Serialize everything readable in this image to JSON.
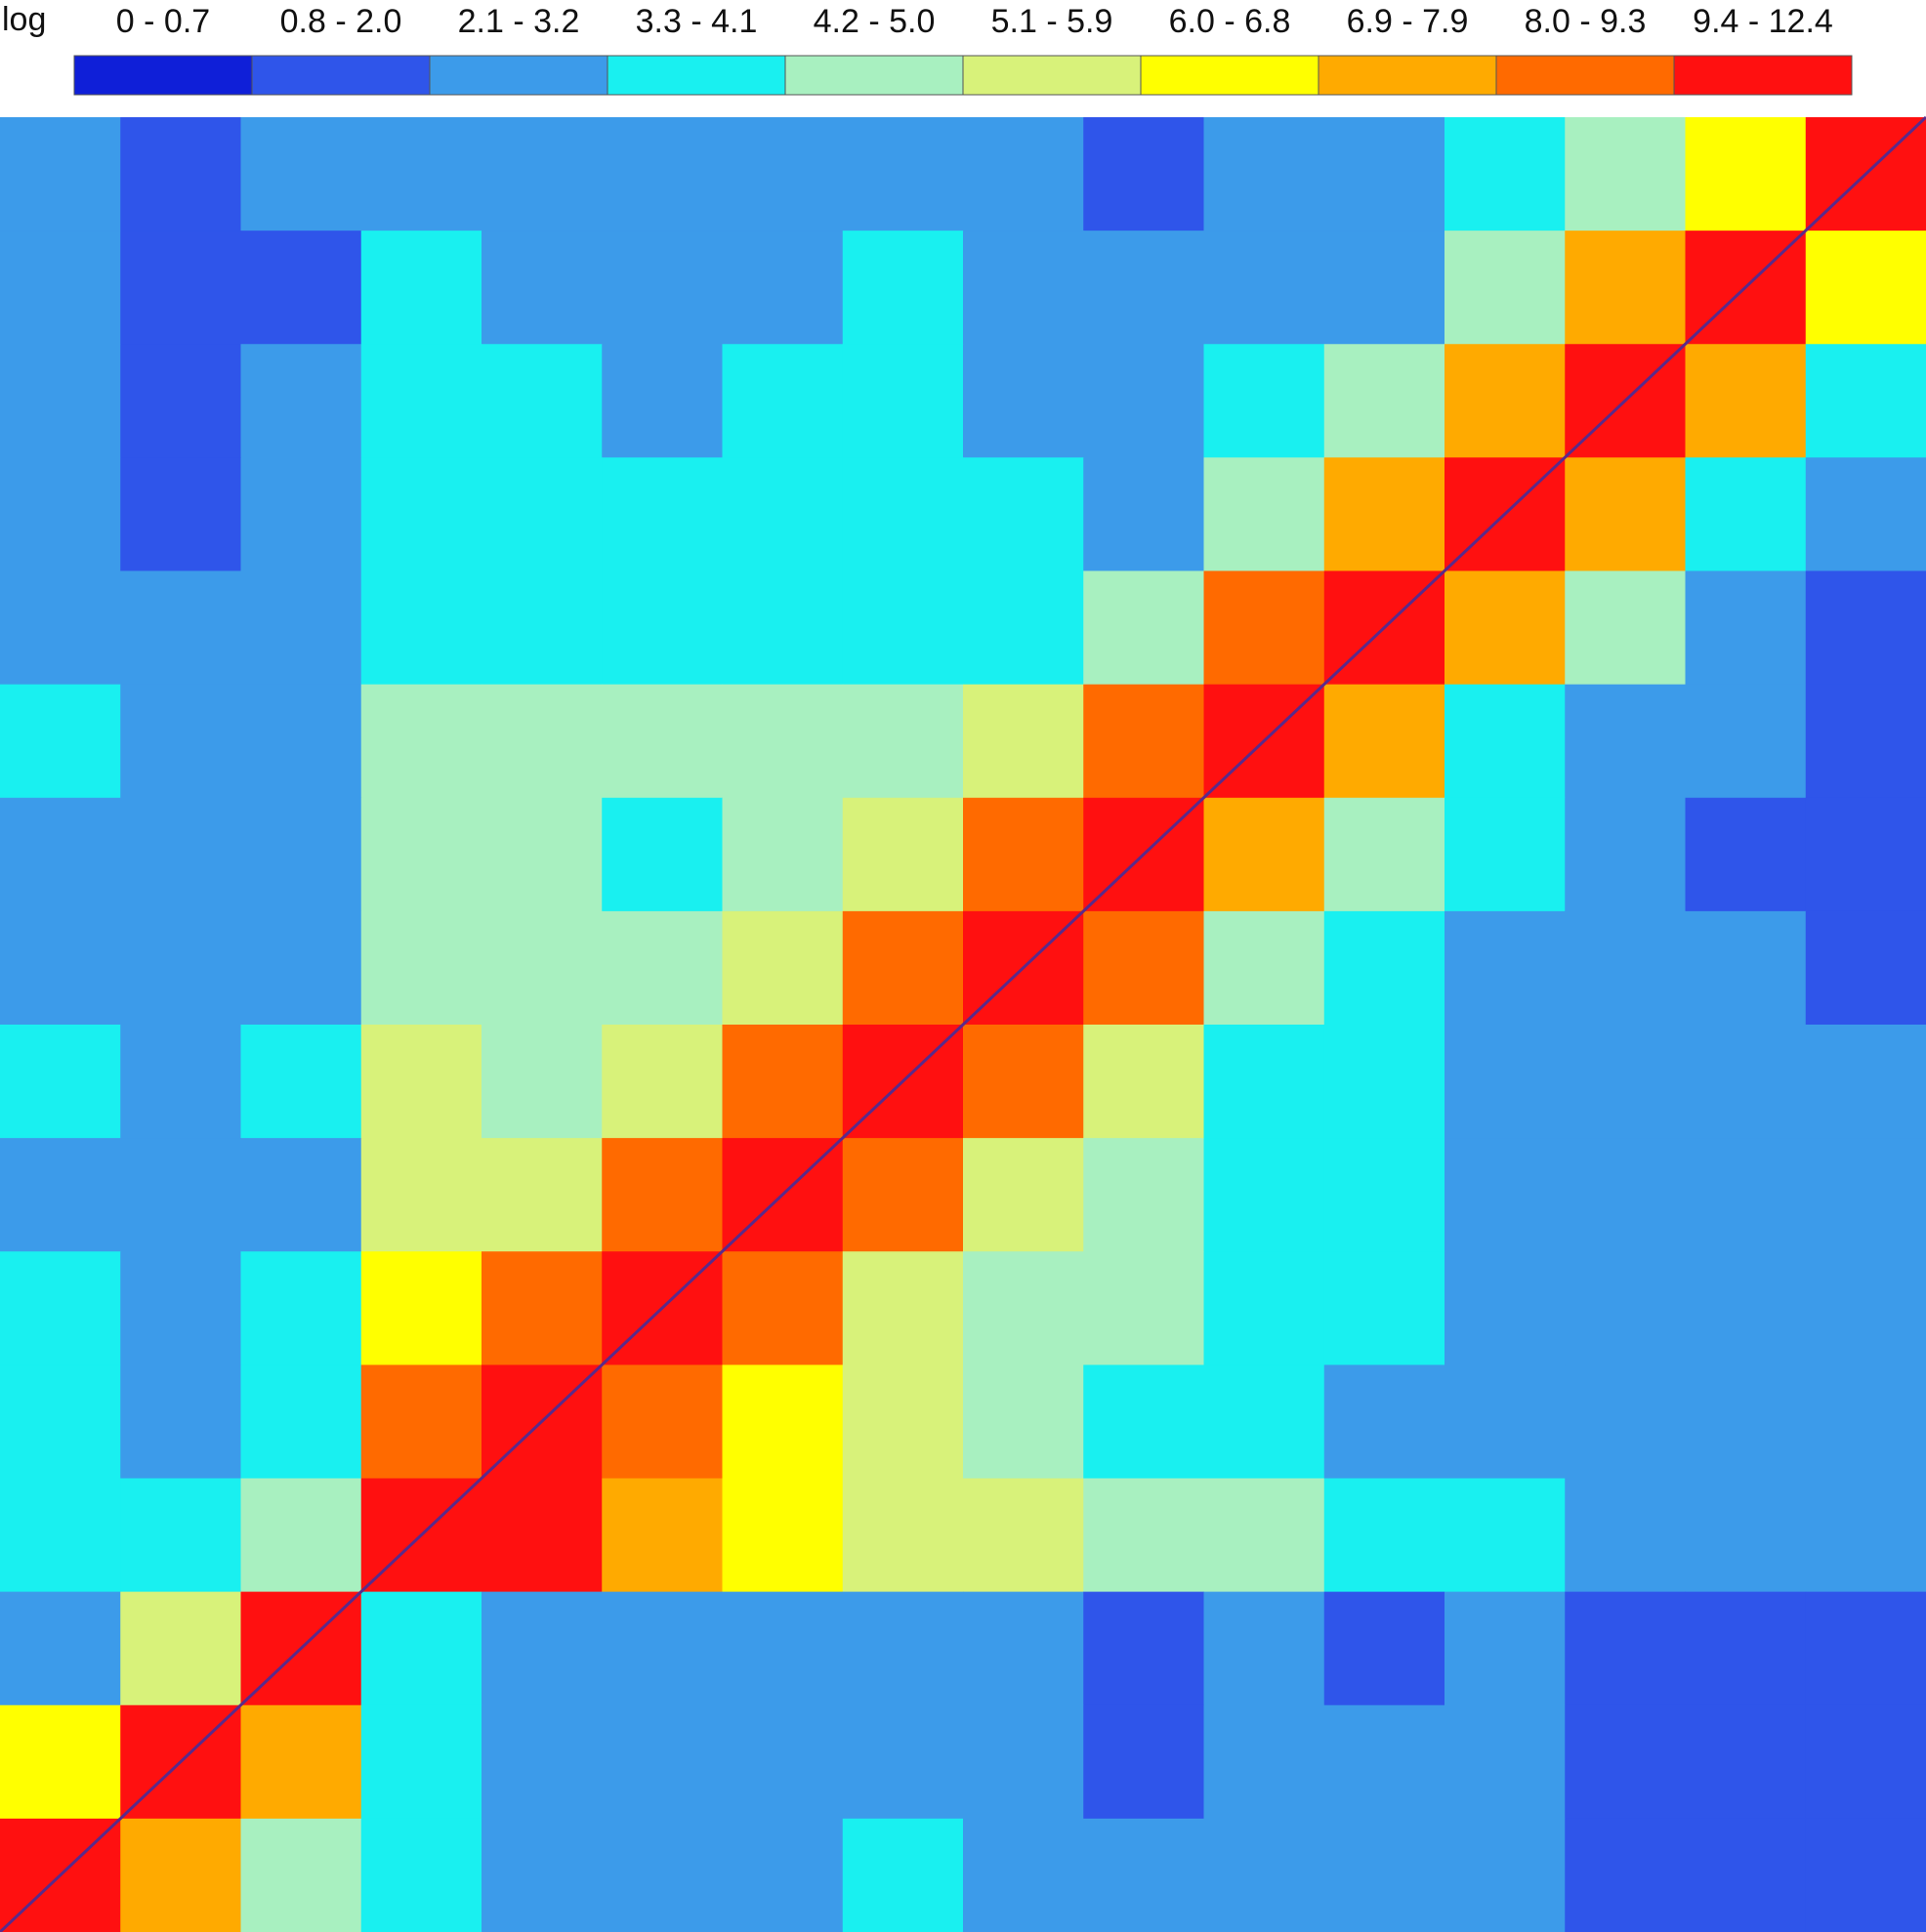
{
  "chart_data": {
    "type": "heatmap",
    "legend": {
      "title": "log",
      "bins": [
        {
          "label": "0 - 0.7",
          "min": 0,
          "max": 0.7,
          "color": "#0f1fd8"
        },
        {
          "label": "0.8 - 2.0",
          "min": 0.8,
          "max": 2.0,
          "color": "#2f55ea"
        },
        {
          "label": "2.1 - 3.2",
          "min": 2.1,
          "max": 3.2,
          "color": "#3c9bea"
        },
        {
          "label": "3.3 - 4.1",
          "min": 3.3,
          "max": 4.1,
          "color": "#19f0f0"
        },
        {
          "label": "4.2 - 5.0",
          "min": 4.2,
          "max": 5.0,
          "color": "#a8f0c0"
        },
        {
          "label": "5.1 - 5.9",
          "min": 5.1,
          "max": 5.9,
          "color": "#d8f27a"
        },
        {
          "label": "6.0 - 6.8",
          "min": 6.0,
          "max": 6.8,
          "color": "#ffff00"
        },
        {
          "label": "6.9 - 7.9",
          "min": 6.9,
          "max": 7.9,
          "color": "#ffaa00"
        },
        {
          "label": "8.0 - 9.3",
          "min": 8.0,
          "max": 9.3,
          "color": "#ff6a00"
        },
        {
          "label": "9.4 - 12.4",
          "min": 9.4,
          "max": 12.4,
          "color": "#ff1010"
        }
      ]
    },
    "values": [
      [
        2.5,
        1.8,
        2.2,
        2.9,
        3.0,
        2.7,
        2.8,
        3.1,
        2.4,
        1.9,
        3.0,
        2.6,
        3.4,
        4.2,
        6.8,
        11.5
      ],
      [
        2.2,
        1.6,
        2.0,
        3.3,
        3.1,
        2.9,
        3.0,
        3.4,
        2.7,
        2.1,
        3.2,
        3.0,
        4.5,
        7.2,
        11.2,
        6.5
      ],
      [
        2.6,
        2.0,
        2.4,
        3.5,
        3.4,
        3.2,
        3.3,
        3.6,
        3.0,
        2.2,
        3.6,
        4.8,
        7.4,
        11.0,
        7.0,
        3.5
      ],
      [
        2.4,
        1.9,
        2.1,
        3.6,
        3.6,
        3.4,
        3.5,
        3.8,
        3.3,
        2.4,
        5.0,
        7.6,
        11.3,
        7.1,
        3.9,
        2.3
      ],
      [
        3.0,
        2.5,
        2.7,
        4.0,
        3.9,
        3.8,
        3.9,
        4.1,
        3.8,
        4.6,
        8.2,
        11.1,
        7.3,
        4.2,
        2.4,
        2.0
      ],
      [
        3.3,
        2.9,
        3.1,
        4.5,
        4.3,
        4.2,
        4.4,
        4.7,
        5.2,
        8.0,
        10.9,
        7.4,
        4.0,
        3.1,
        2.2,
        1.9
      ],
      [
        2.8,
        2.4,
        2.6,
        4.6,
        4.2,
        4.1,
        4.6,
        5.3,
        8.4,
        11.4,
        7.8,
        4.4,
        3.4,
        2.6,
        1.7,
        1.5
      ],
      [
        3.1,
        2.7,
        2.9,
        5.0,
        4.5,
        4.8,
        5.4,
        8.6,
        11.2,
        8.1,
        4.8,
        3.6,
        3.0,
        2.5,
        2.1,
        1.8
      ],
      [
        3.4,
        3.0,
        3.3,
        5.2,
        5.0,
        5.6,
        8.7,
        11.0,
        8.5,
        5.2,
        4.0,
        3.5,
        3.2,
        2.9,
        2.6,
        2.4
      ],
      [
        3.2,
        2.9,
        3.2,
        5.5,
        5.8,
        8.9,
        11.6,
        8.8,
        5.6,
        4.3,
        3.7,
        3.3,
        3.0,
        2.7,
        2.5,
        2.3
      ],
      [
        3.5,
        3.1,
        3.4,
        6.0,
        9.0,
        11.3,
        8.9,
        5.9,
        4.9,
        4.2,
        3.9,
        3.4,
        3.1,
        2.8,
        2.6,
        2.4
      ],
      [
        3.6,
        3.2,
        3.5,
        9.1,
        11.5,
        9.2,
        6.1,
        5.2,
        4.6,
        4.0,
        3.7,
        3.2,
        2.9,
        2.6,
        2.5,
        2.3
      ],
      [
        3.9,
        3.6,
        4.3,
        11.8,
        9.4,
        7.0,
        6.3,
        5.8,
        5.1,
        4.5,
        4.2,
        3.8,
        3.5,
        3.2,
        3.0,
        2.9
      ],
      [
        3.0,
        5.2,
        11.0,
        4.0,
        2.8,
        2.5,
        2.6,
        2.9,
        2.3,
        1.8,
        2.4,
        2.0,
        2.2,
        1.7,
        1.5,
        1.4
      ],
      [
        6.5,
        11.2,
        7.4,
        4.1,
        2.9,
        2.6,
        2.8,
        3.0,
        2.5,
        1.9,
        2.6,
        2.2,
        2.3,
        1.8,
        1.6,
        1.5
      ],
      [
        11.6,
        7.0,
        5.0,
        3.6,
        3.2,
        2.9,
        3.1,
        3.3,
        2.8,
        2.2,
        2.9,
        2.5,
        2.6,
        2.0,
        1.8,
        1.7
      ]
    ]
  }
}
